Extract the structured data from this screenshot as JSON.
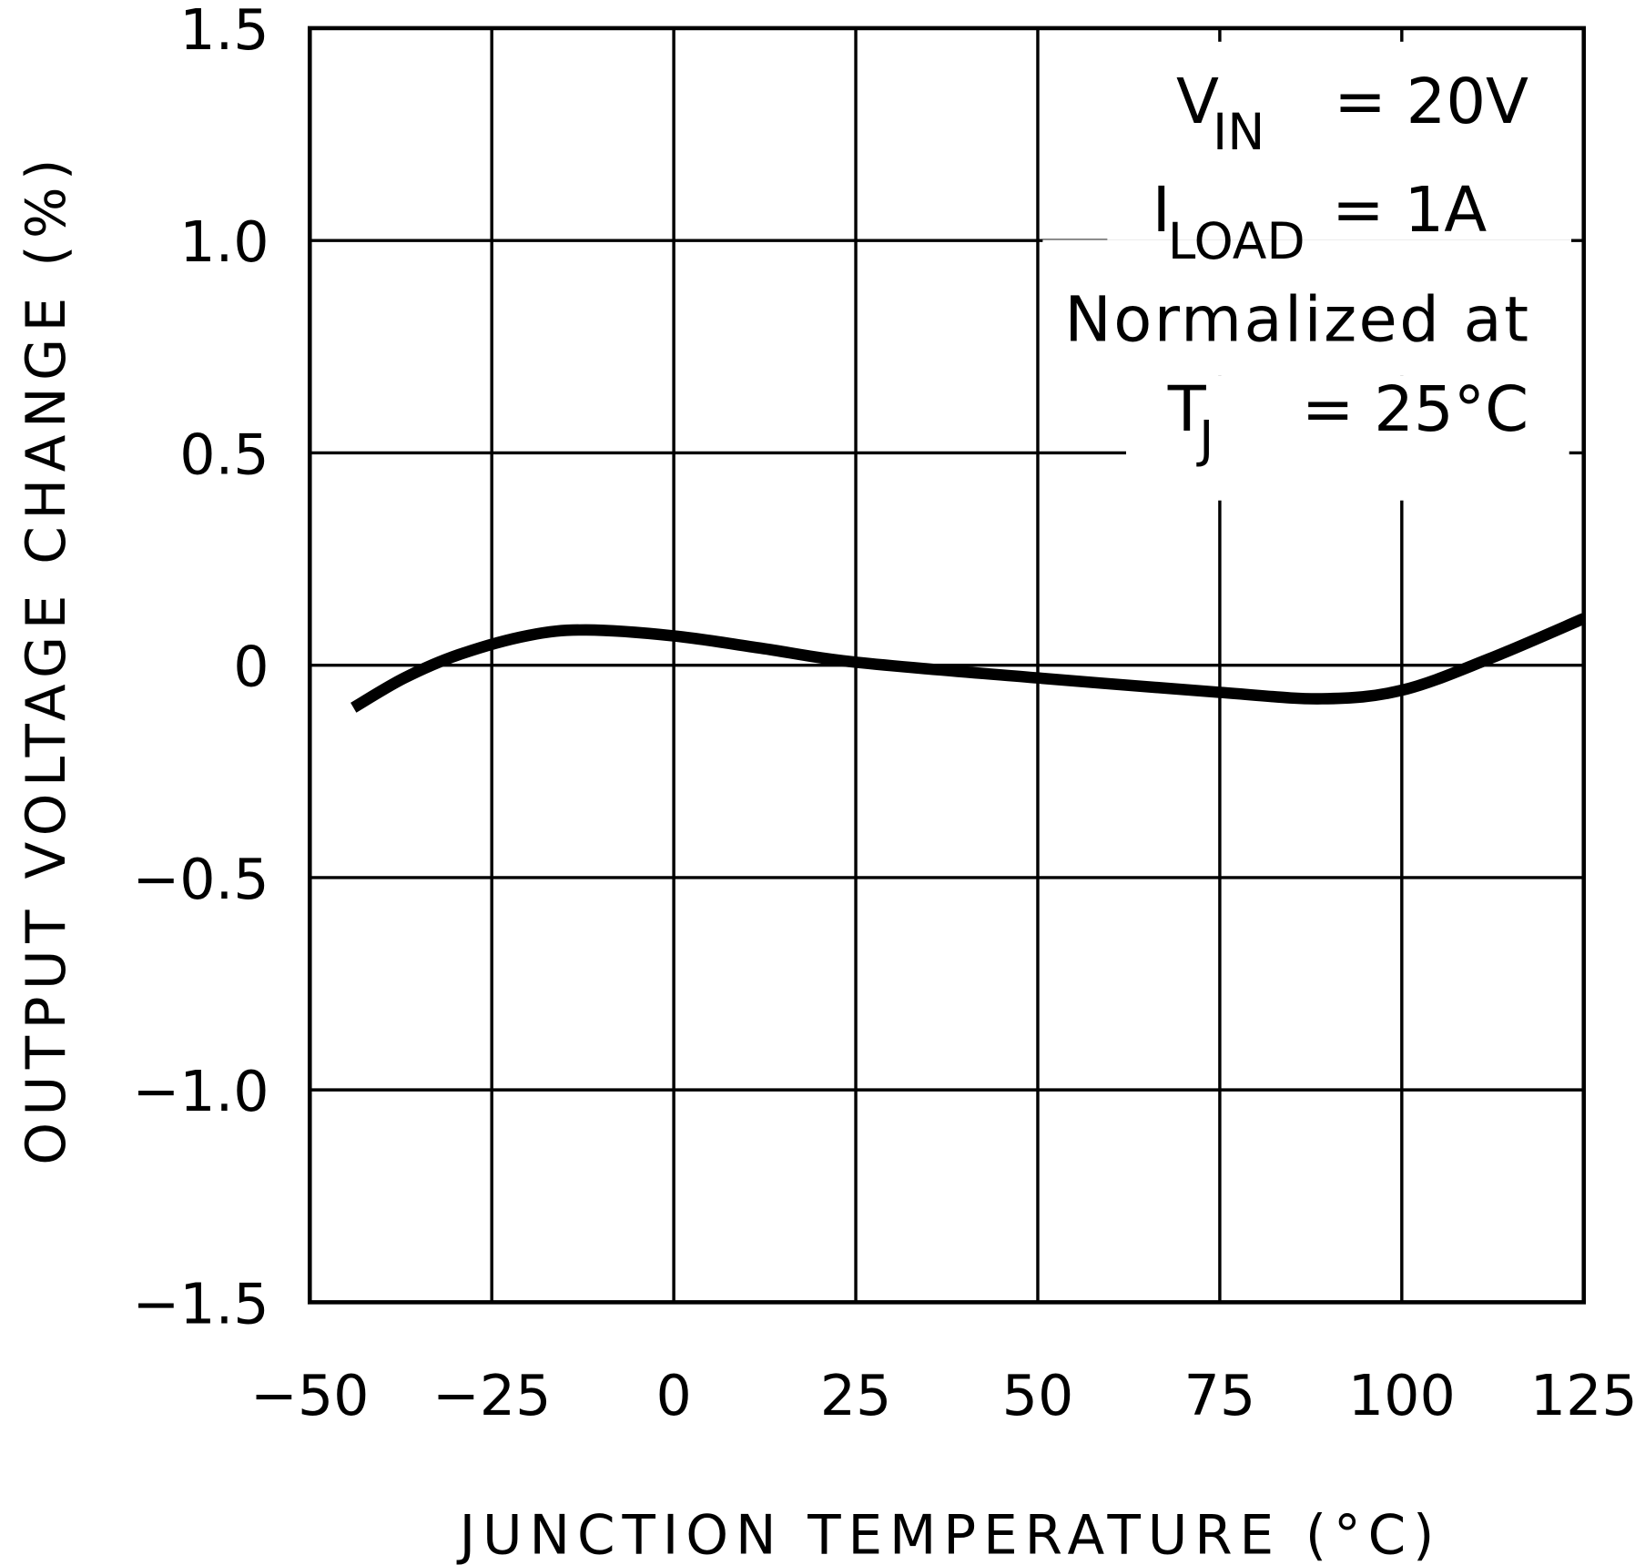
{
  "chart_data": {
    "type": "line",
    "xlabel": "JUNCTION TEMPERATURE (°C)",
    "ylabel": "OUTPUT VOLTAGE CHANGE (%)",
    "xlim": [
      -50,
      125
    ],
    "ylim": [
      -1.5,
      1.5
    ],
    "grid": true,
    "x_ticks": [
      "-50",
      "-25",
      "0",
      "25",
      "50",
      "75",
      "100",
      "125"
    ],
    "x_tick_values": [
      -50,
      -25,
      0,
      25,
      50,
      75,
      100,
      125
    ],
    "y_ticks": [
      "1.5",
      "1.0",
      "0.5",
      "0",
      "-0.5",
      "-1.0",
      "-1.5"
    ],
    "y_tick_values": [
      1.5,
      1.0,
      0.5,
      0,
      -0.5,
      -1.0,
      -1.5
    ],
    "series": [
      {
        "x": [
          -44,
          -37,
          -29.5,
          -20,
          -12,
          0,
          12,
          25,
          50,
          75,
          89,
          100,
          112,
          125
        ],
        "y": [
          -0.1,
          -0.03,
          0.025,
          0.07,
          0.083,
          0.069,
          0.04,
          0.007,
          -0.03,
          -0.064,
          -0.079,
          -0.059,
          0.015,
          0.11
        ],
        "color": "#000000"
      }
    ],
    "annotations": {
      "vin_label": "V",
      "vin_sub": "IN",
      "vin_value": "= 20V",
      "iload_label": "I",
      "iload_sub": "LOAD",
      "iload_value": "= 1A",
      "norm_line": "Normalized at",
      "tj_label": "T",
      "tj_sub": "J",
      "tj_value": "= 25°C"
    }
  }
}
